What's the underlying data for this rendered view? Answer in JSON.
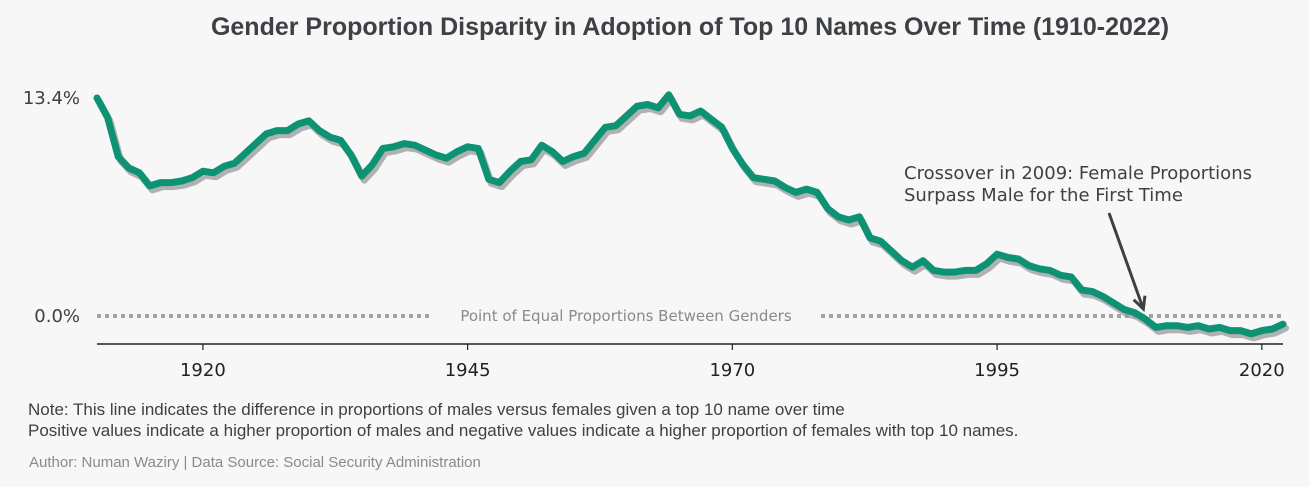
{
  "chart_data": {
    "type": "line",
    "title": "Gender Proportion Disparity in Adoption of Top 10 Names Over Time (1910-2022)",
    "xlabel": "",
    "ylabel": "",
    "xlim": [
      1910,
      2022
    ],
    "ylim": [
      -1.6,
      15
    ],
    "xticks": [
      "1920",
      "1945",
      "1970",
      "1995",
      "2020"
    ],
    "yticks": [
      "0.0%",
      "13.4%"
    ],
    "ytick_values": [
      0.0,
      13.4
    ],
    "reference_line": {
      "y": 0.0,
      "label": "Point of Equal Proportions Between Genders"
    },
    "annotation": {
      "lines": [
        "Crossover in 2009: Female Proportions",
        "Surpass Male for the First Time"
      ],
      "points_to_x": 2009
    },
    "series": [
      {
        "color": "#0d9373",
        "x": [
          1910,
          1911,
          1912,
          1913,
          1914,
          1915,
          1916,
          1917,
          1918,
          1919,
          1920,
          1921,
          1922,
          1923,
          1924,
          1925,
          1926,
          1927,
          1928,
          1929,
          1930,
          1931,
          1932,
          1933,
          1934,
          1935,
          1936,
          1937,
          1938,
          1939,
          1940,
          1941,
          1942,
          1943,
          1944,
          1945,
          1946,
          1947,
          1948,
          1949,
          1950,
          1951,
          1952,
          1953,
          1954,
          1955,
          1956,
          1957,
          1958,
          1959,
          1960,
          1961,
          1962,
          1963,
          1964,
          1965,
          1966,
          1967,
          1968,
          1969,
          1970,
          1971,
          1972,
          1973,
          1974,
          1975,
          1976,
          1977,
          1978,
          1979,
          1980,
          1981,
          1982,
          1983,
          1984,
          1985,
          1986,
          1987,
          1988,
          1989,
          1990,
          1991,
          1992,
          1993,
          1994,
          1995,
          1996,
          1997,
          1998,
          1999,
          2000,
          2001,
          2002,
          2003,
          2004,
          2005,
          2006,
          2007,
          2008,
          2009,
          2010,
          2011,
          2012,
          2013,
          2014,
          2015,
          2016,
          2017,
          2018,
          2019,
          2020,
          2021,
          2022
        ],
        "y": [
          13.4,
          12.2,
          9.8,
          9.1,
          8.8,
          8.0,
          8.2,
          8.2,
          8.3,
          8.5,
          8.9,
          8.8,
          9.2,
          9.4,
          10.0,
          10.6,
          11.2,
          11.4,
          11.4,
          11.8,
          12.0,
          11.4,
          11.0,
          10.8,
          9.9,
          8.6,
          9.3,
          10.3,
          10.4,
          10.6,
          10.5,
          10.2,
          9.9,
          9.7,
          10.1,
          10.4,
          10.3,
          8.4,
          8.2,
          8.9,
          9.5,
          9.6,
          10.5,
          10.1,
          9.5,
          9.8,
          10.0,
          10.8,
          11.6,
          11.7,
          12.3,
          12.9,
          13.0,
          12.8,
          13.6,
          12.4,
          12.3,
          12.6,
          12.1,
          11.6,
          10.3,
          9.3,
          8.5,
          8.4,
          8.3,
          7.9,
          7.6,
          7.8,
          7.6,
          6.6,
          6.1,
          5.9,
          6.1,
          4.8,
          4.6,
          4.0,
          3.4,
          3.0,
          3.4,
          2.8,
          2.7,
          2.7,
          2.8,
          2.8,
          3.2,
          3.8,
          3.6,
          3.5,
          3.1,
          2.9,
          2.8,
          2.5,
          2.4,
          1.6,
          1.5,
          1.2,
          0.8,
          0.4,
          0.2,
          -0.2,
          -0.7,
          -0.6,
          -0.6,
          -0.7,
          -0.6,
          -0.8,
          -0.7,
          -0.9,
          -0.9,
          -1.1,
          -0.9,
          -0.8,
          -0.5
        ]
      }
    ]
  },
  "notes": {
    "line1": "Note: This line indicates the difference in proportions of males versus females given a top 10 name over time",
    "line2": "Positive values indicate a higher proportion of males and negative values indicate a higher proportion of females with top 10 names."
  },
  "credit": "Author: Numan Waziry  |  Data Source: Social Security Administration"
}
